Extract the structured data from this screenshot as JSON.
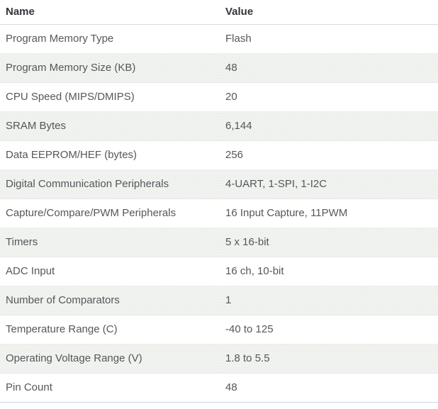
{
  "table": {
    "columns": {
      "name": "Name",
      "value": "Value"
    },
    "rows": [
      {
        "name": "Program Memory Type",
        "value": "Flash"
      },
      {
        "name": "Program Memory Size (KB)",
        "value": "48"
      },
      {
        "name": "CPU Speed (MIPS/DMIPS)",
        "value": "20"
      },
      {
        "name": "SRAM Bytes",
        "value": "6,144"
      },
      {
        "name": "Data EEPROM/HEF (bytes)",
        "value": "256"
      },
      {
        "name": "Digital Communication Peripherals",
        "value": "4-UART, 1-SPI, 1-I2C"
      },
      {
        "name": "Capture/Compare/PWM Peripherals",
        "value": "16 Input Capture, 11PWM"
      },
      {
        "name": "Timers",
        "value": "5 x 16-bit"
      },
      {
        "name": "ADC Input",
        "value": "16 ch, 10-bit"
      },
      {
        "name": "Number of Comparators",
        "value": "1"
      },
      {
        "name": "Temperature Range (C)",
        "value": "-40 to 125"
      },
      {
        "name": "Operating Voltage Range (V)",
        "value": "1.8 to 5.5"
      },
      {
        "name": "Pin Count",
        "value": "48"
      }
    ],
    "colors": {
      "header_text": "#33363b",
      "body_text": "#54575b",
      "stripe_base": "#f6f7f5",
      "stripe_dot": "#e8ece7",
      "row_border": "#eceeec",
      "header_border": "#d9dbd9",
      "bottom_border": "#ccd8da"
    }
  }
}
